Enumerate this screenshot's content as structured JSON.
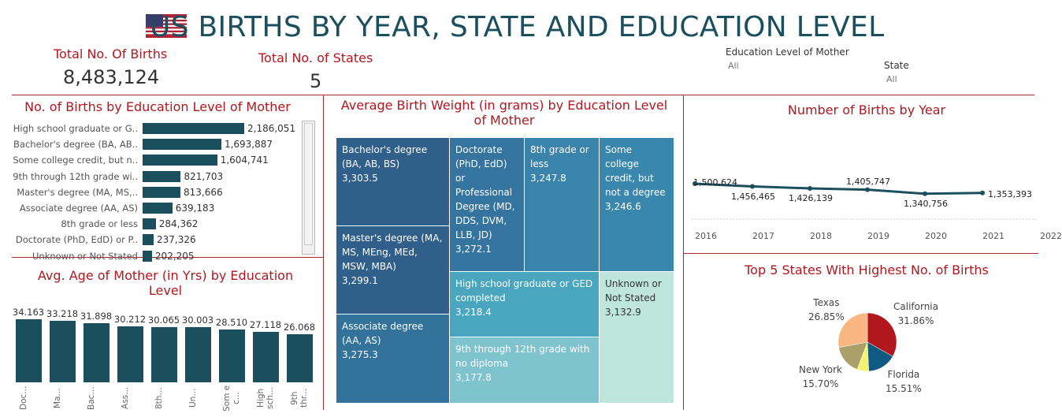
{
  "header": {
    "title": "US BIRTHS BY YEAR, STATE AND EDUCATION LEVEL",
    "icon": "us-flag-icon"
  },
  "kpis": {
    "births_label": "Total No. Of Births",
    "births_value": "8,483,124",
    "states_label": "Total No. of States",
    "states_value": "5"
  },
  "filters": {
    "education": {
      "label": "Education Level of Mother",
      "value": "All"
    },
    "state": {
      "label": "State",
      "value": "All"
    }
  },
  "colors": {
    "accent": "#b2171e",
    "bar": "#1b4f5e",
    "divider": "#a52a2a"
  },
  "births_by_education": {
    "title": "No. of Births by Education Level of Mother",
    "rows": [
      {
        "label": "High school graduate or G..",
        "value": 2186051,
        "display": "2,186,051"
      },
      {
        "label": "Bachelor's degree (BA, AB..",
        "value": 1693887,
        "display": "1,693,887"
      },
      {
        "label": "Some college credit, but n..",
        "value": 1604741,
        "display": "1,604,741"
      },
      {
        "label": "9th through 12th grade wi..",
        "value": 821703,
        "display": "821,703"
      },
      {
        "label": "Master's degree (MA, MS,..",
        "value": 813666,
        "display": "813,666"
      },
      {
        "label": "Associate degree (AA, AS)",
        "value": 639183,
        "display": "639,183"
      },
      {
        "label": "8th grade or less",
        "value": 284362,
        "display": "284,362"
      },
      {
        "label": "Doctorate (PhD, EdD) or P..",
        "value": 237326,
        "display": "237,326"
      },
      {
        "label": "Unknown or Not Stated",
        "value": 202205,
        "display": "202,205"
      }
    ]
  },
  "age_by_education": {
    "title": "Avg. Age of Mother (in Yrs)  by Education Level",
    "bars": [
      {
        "label": "Doc...",
        "value": 34.163,
        "display": "34.163"
      },
      {
        "label": "Ma...",
        "value": 33.218,
        "display": "33.218"
      },
      {
        "label": "Bac...",
        "value": 31.898,
        "display": "31.898"
      },
      {
        "label": "Ass...",
        "value": 30.212,
        "display": "30.212"
      },
      {
        "label": "8th...",
        "value": 30.065,
        "display": "30.065"
      },
      {
        "label": "Un...",
        "value": 30.003,
        "display": "30.003"
      },
      {
        "label": "Som e c...",
        "value": 28.51,
        "display": "28.510"
      },
      {
        "label": "High sch...",
        "value": 27.118,
        "display": "27.118"
      },
      {
        "label": "9th thr...",
        "value": 26.068,
        "display": "26.068"
      }
    ]
  },
  "weight_by_education": {
    "title": "Average Birth Weight (in grams) by Education Level of Mother",
    "cells": [
      {
        "name": "Bachelor's degree (BA, AB, BS)",
        "value": "3,303.5",
        "color": "#2f5f8a"
      },
      {
        "name": "Master's degree (MA, MS, MEng, MEd, MSW, MBA)",
        "value": "3,299.1",
        "color": "#2f5f8a"
      },
      {
        "name": "Associate degree (AA, AS)",
        "value": "3,275.3",
        "color": "#32729b"
      },
      {
        "name": "Doctorate (PhD, EdD) or Professional Degree (MD, DDS, DVM, LLB, JD)",
        "value": "3,272.1",
        "color": "#34749e"
      },
      {
        "name": "8th grade or less",
        "value": "3,247.8",
        "color": "#3a84ab"
      },
      {
        "name": "Some college credit, but not a degree",
        "value": "3,246.6",
        "color": "#3a87ad"
      },
      {
        "name": "High school graduate or GED completed",
        "value": "3,218.4",
        "color": "#4aa6bf"
      },
      {
        "name": "9th through 12th grade with no diploma",
        "value": "3,177.8",
        "color": "#7fc3cf"
      },
      {
        "name": "Unknown or Not Stated",
        "value": "3,132.9",
        "color": "#bfe6dc"
      }
    ]
  },
  "births_by_year": {
    "title": "Number of Births by Year",
    "points": [
      {
        "year": 2016,
        "value": 1500624,
        "display": "1,500,624"
      },
      {
        "year": 2017,
        "value": 1456465,
        "display": "1,456,465"
      },
      {
        "year": 2018,
        "value": 1426139,
        "display": "1,426,139"
      },
      {
        "year": 2019,
        "value": 1405747,
        "display": "1,405,747"
      },
      {
        "year": 2020,
        "value": 1340756,
        "display": "1,340,756"
      },
      {
        "year": 2021,
        "value": 1353393,
        "display": "1,353,393"
      }
    ],
    "ticks": [
      "2016",
      "2017",
      "2018",
      "2019",
      "2020",
      "2021",
      "2022"
    ]
  },
  "top_states": {
    "title": "Top 5 States With Highest No. of Births",
    "slices": [
      {
        "name": "California",
        "pct": 31.86,
        "display": "31.86%",
        "color": "#b2171e"
      },
      {
        "name": "Florida",
        "pct": 15.51,
        "display": "15.51%",
        "color": "#0f5a82"
      },
      {
        "name": "Unlabeled",
        "pct": 6.2,
        "display": "",
        "color": "#f5f171"
      },
      {
        "name": "New York",
        "pct": 15.7,
        "display": "15.70%",
        "color": "#aca06a"
      },
      {
        "name": "Texas",
        "pct": 26.85,
        "display": "26.85%",
        "color": "#f9b680"
      }
    ]
  },
  "chart_data": [
    {
      "type": "bar",
      "title": "No. of Births by Education Level of Mother",
      "categories": [
        "High school graduate or G..",
        "Bachelor's degree (BA, AB..",
        "Some college credit, but n..",
        "9th through 12th grade wi..",
        "Master's degree (MA, MS,..",
        "Associate degree (AA, AS)",
        "8th grade or less",
        "Doctorate (PhD, EdD) or P..",
        "Unknown or Not Stated"
      ],
      "values": [
        2186051,
        1693887,
        1604741,
        821703,
        813666,
        639183,
        284362,
        237326,
        202205
      ]
    },
    {
      "type": "bar",
      "title": "Avg. Age of Mother (in Yrs)  by Education Level",
      "categories": [
        "Doc...",
        "Ma...",
        "Bac...",
        "Ass...",
        "8th...",
        "Un...",
        "Som e c...",
        "High sch...",
        "9th thr..."
      ],
      "values": [
        34.163,
        33.218,
        31.898,
        30.212,
        30.065,
        30.003,
        28.51,
        27.118,
        26.068
      ]
    },
    {
      "type": "line",
      "title": "Number of Births by Year",
      "x": [
        2016,
        2017,
        2018,
        2019,
        2020,
        2021
      ],
      "values": [
        1500624,
        1456465,
        1426139,
        1405747,
        1340756,
        1353393
      ]
    },
    {
      "type": "pie",
      "title": "Top 5 States With Highest No. of Births",
      "categories": [
        "California",
        "Florida",
        "New York",
        "Texas"
      ],
      "values": [
        31.86,
        15.51,
        15.7,
        26.85
      ]
    }
  ]
}
